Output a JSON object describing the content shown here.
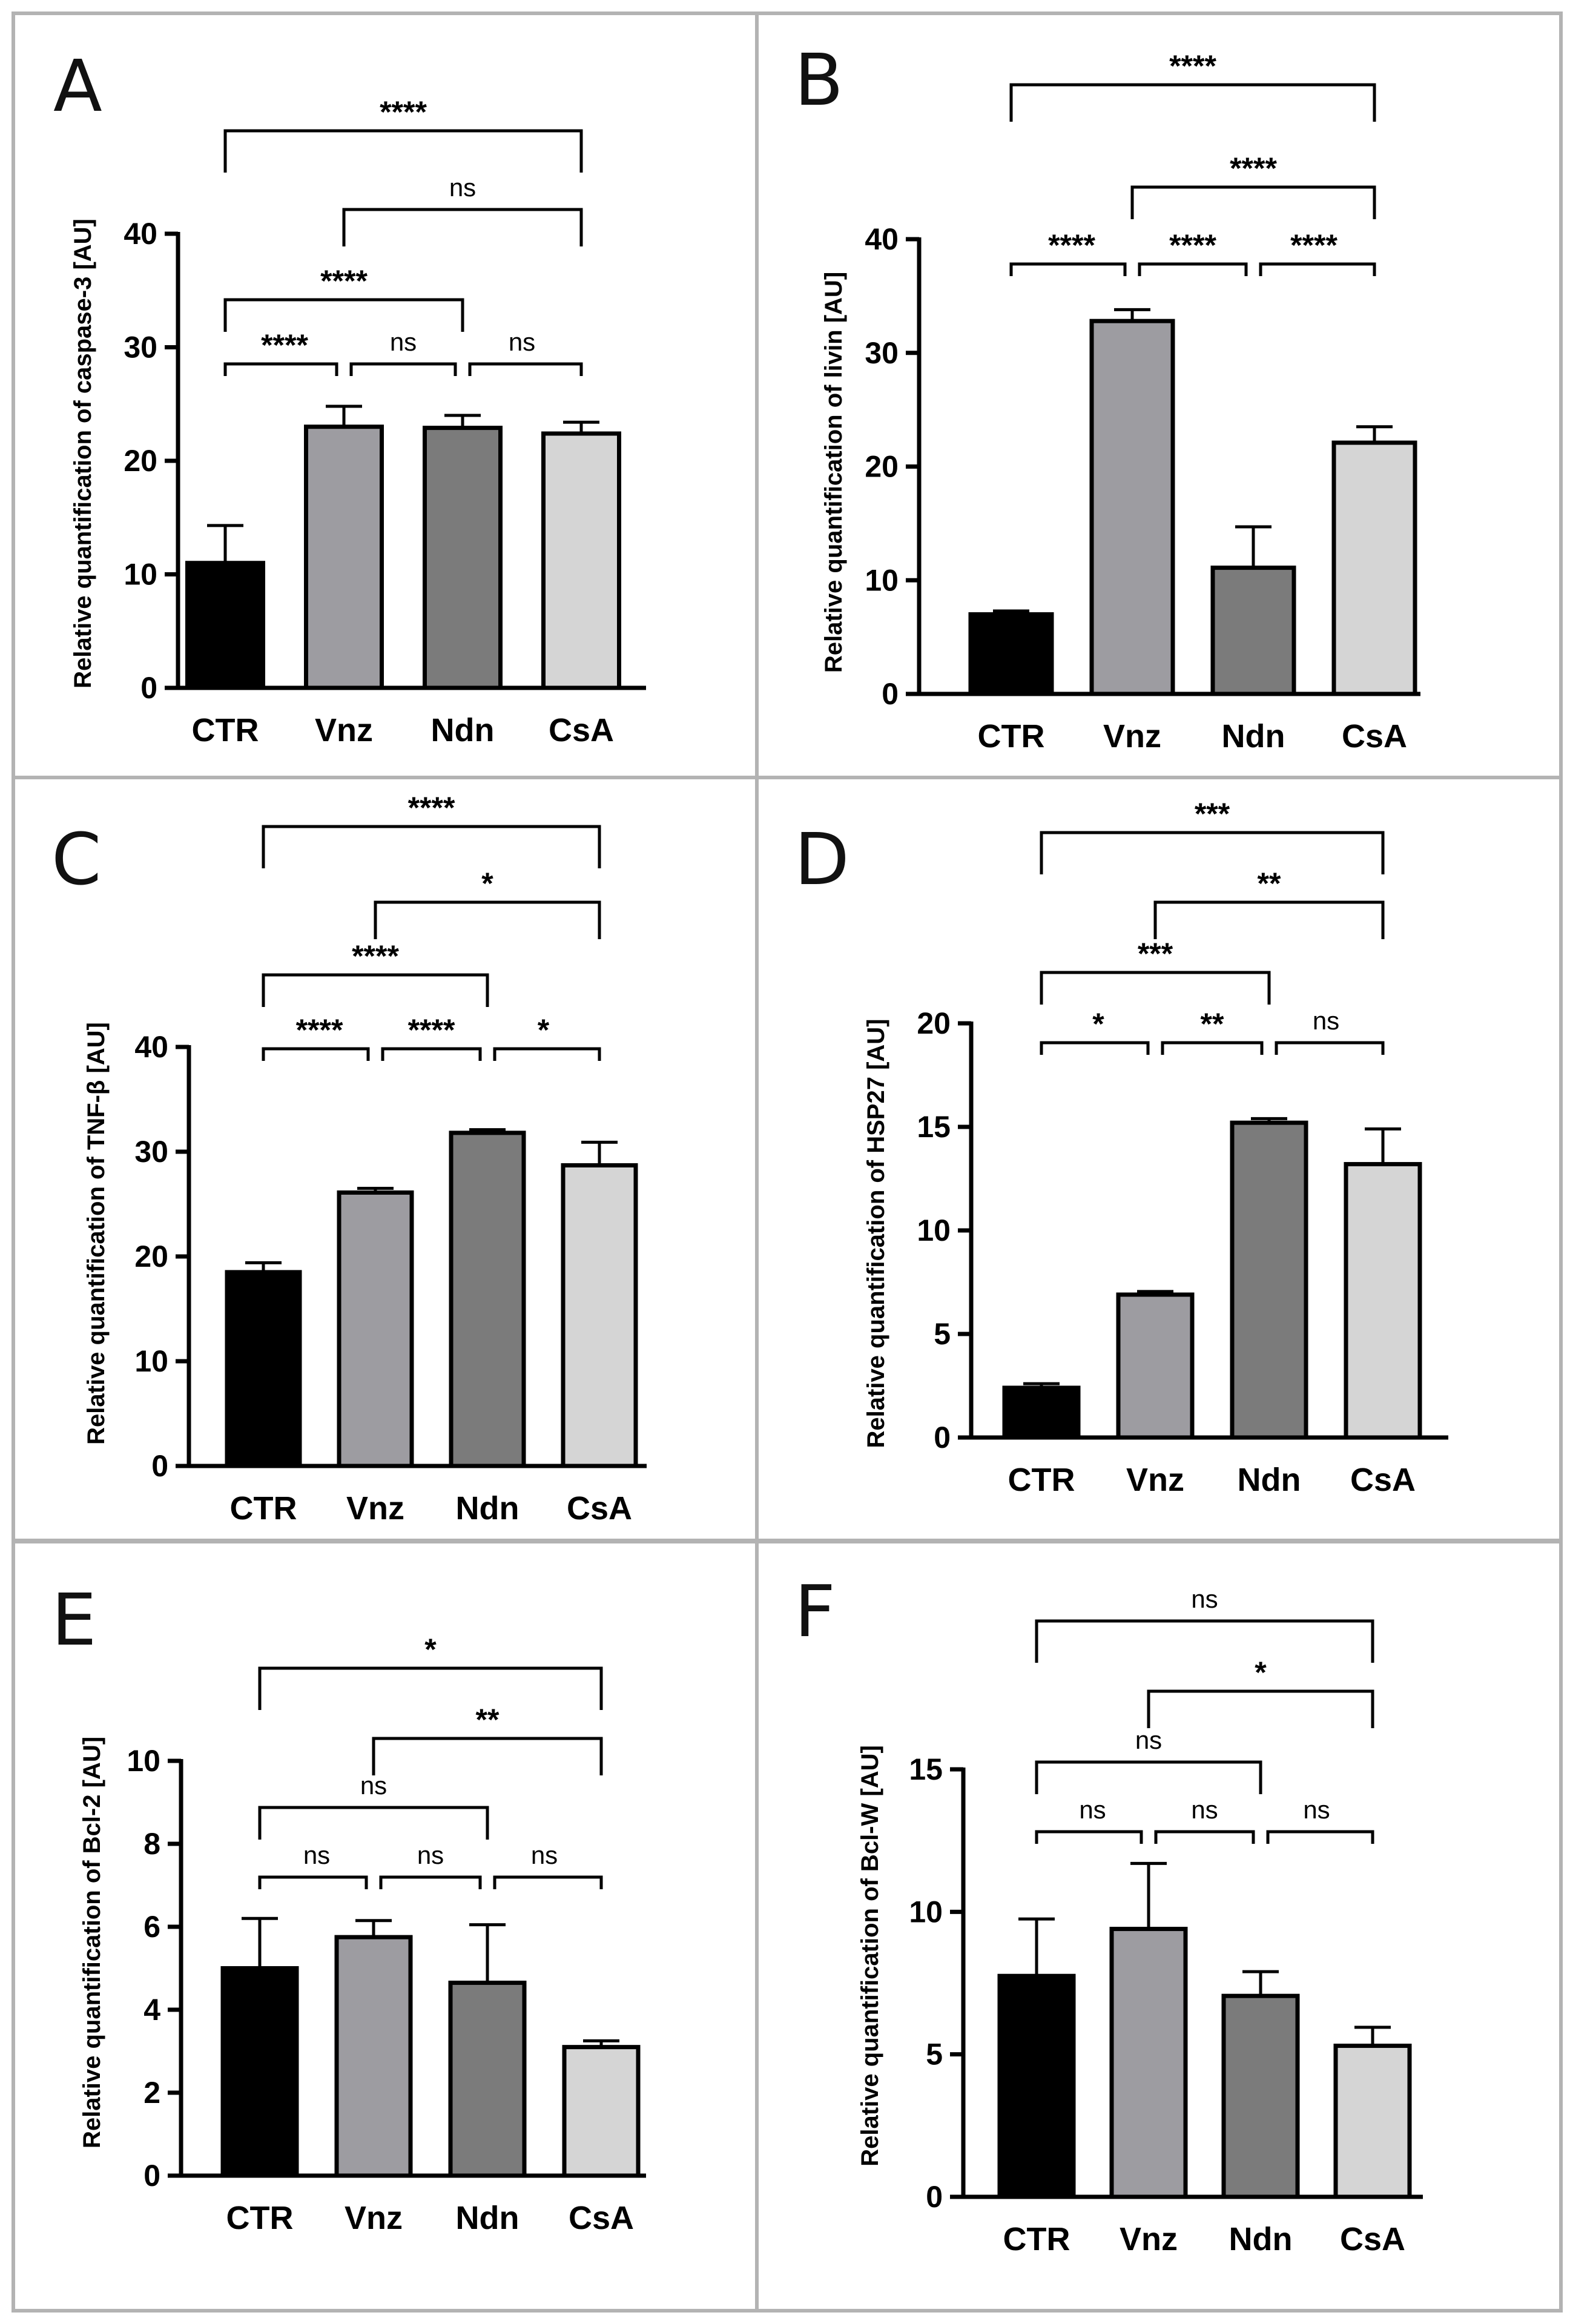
{
  "chart_data": [
    {
      "type": "bar",
      "panel": "A",
      "categories": [
        "CTR",
        "Vnz",
        "Ndn",
        "CsA"
      ],
      "values": [
        11.0,
        23.0,
        22.9,
        22.4
      ],
      "errors": [
        3.3,
        1.8,
        1.1,
        1.0
      ],
      "bar_colors": [
        "#000000",
        "#9d9ca1",
        "#7b7b7b",
        "#d5d5d5"
      ],
      "ylabel": "Relative quantification of caspase-3 [AU]",
      "ylim": [
        0,
        40
      ],
      "yticks": [
        0,
        10,
        20,
        30,
        40
      ],
      "ytick_labels": [
        "0",
        "10",
        "20",
        "30",
        "40"
      ],
      "comparisons": [
        {
          "from": 0,
          "to": 1,
          "label": "****",
          "level": 0
        },
        {
          "from": 1,
          "to": 2,
          "label": "ns",
          "level": 0
        },
        {
          "from": 2,
          "to": 3,
          "label": "ns",
          "level": 0
        },
        {
          "from": 0,
          "to": 2,
          "label": "****",
          "level": 1
        },
        {
          "from": 1,
          "to": 3,
          "label": "ns",
          "level": 2
        },
        {
          "from": 0,
          "to": 3,
          "label": "****",
          "level": 3
        }
      ]
    },
    {
      "type": "bar",
      "panel": "B",
      "categories": [
        "CTR",
        "Vnz",
        "Ndn",
        "CsA"
      ],
      "values": [
        7.0,
        32.8,
        11.1,
        22.1
      ],
      "errors": [
        0.3,
        1.0,
        3.6,
        1.4
      ],
      "bar_colors": [
        "#000000",
        "#9d9ca1",
        "#7b7b7b",
        "#d5d5d5"
      ],
      "ylabel": "Relative quantification of livin [AU]",
      "ylim": [
        0,
        40
      ],
      "yticks": [
        0,
        10,
        20,
        30,
        40
      ],
      "ytick_labels": [
        "0",
        "10",
        "20",
        "30",
        "40"
      ],
      "comparisons": [
        {
          "from": 0,
          "to": 1,
          "label": "****",
          "level": 0
        },
        {
          "from": 1,
          "to": 2,
          "label": "****",
          "level": 0
        },
        {
          "from": 2,
          "to": 3,
          "label": "****",
          "level": 0
        },
        {
          "from": 1,
          "to": 3,
          "label": "****",
          "level": 1
        },
        {
          "from": 0,
          "to": 3,
          "label": "****",
          "level": 2
        }
      ]
    },
    {
      "type": "bar",
      "panel": "C",
      "categories": [
        "CTR",
        "Vnz",
        "Ndn",
        "CsA"
      ],
      "values": [
        18.5,
        26.1,
        31.8,
        28.7
      ],
      "errors": [
        0.9,
        0.4,
        0.3,
        2.2
      ],
      "bar_colors": [
        "#000000",
        "#9d9ca1",
        "#7b7b7b",
        "#d5d5d5"
      ],
      "ylabel": "Relative quantification of TNF-β [AU]",
      "ylim": [
        0,
        40
      ],
      "yticks": [
        0,
        10,
        20,
        30,
        40
      ],
      "ytick_labels": [
        "0",
        "10",
        "20",
        "30",
        "40"
      ],
      "comparisons": [
        {
          "from": 0,
          "to": 1,
          "label": "****",
          "level": 0
        },
        {
          "from": 1,
          "to": 2,
          "label": "****",
          "level": 0
        },
        {
          "from": 2,
          "to": 3,
          "label": "*",
          "level": 0
        },
        {
          "from": 0,
          "to": 2,
          "label": "****",
          "level": 1
        },
        {
          "from": 1,
          "to": 3,
          "label": "*",
          "level": 2
        },
        {
          "from": 0,
          "to": 3,
          "label": "****",
          "level": 3
        }
      ]
    },
    {
      "type": "bar",
      "panel": "D",
      "categories": [
        "CTR",
        "Vnz",
        "Ndn",
        "CsA"
      ],
      "values": [
        2.4,
        6.9,
        15.2,
        13.2
      ],
      "errors": [
        0.2,
        0.15,
        0.2,
        1.7
      ],
      "bar_colors": [
        "#000000",
        "#9d9ca1",
        "#7b7b7b",
        "#d5d5d5"
      ],
      "ylabel": "Relative quantification of HSP27 [AU]",
      "ylim": [
        0,
        20
      ],
      "yticks": [
        0,
        5,
        10,
        15,
        20
      ],
      "ytick_labels": [
        "0",
        "5",
        "10",
        "15",
        "20"
      ],
      "comparisons": [
        {
          "from": 0,
          "to": 1,
          "label": "*",
          "level": 0
        },
        {
          "from": 1,
          "to": 2,
          "label": "**",
          "level": 0
        },
        {
          "from": 2,
          "to": 3,
          "label": "ns",
          "level": 0
        },
        {
          "from": 0,
          "to": 2,
          "label": "***",
          "level": 1
        },
        {
          "from": 1,
          "to": 3,
          "label": "**",
          "level": 2
        },
        {
          "from": 0,
          "to": 3,
          "label": "***",
          "level": 3
        }
      ]
    },
    {
      "type": "bar",
      "panel": "E",
      "categories": [
        "CTR",
        "Vnz",
        "Ndn",
        "CsA"
      ],
      "values": [
        5.0,
        5.75,
        4.65,
        3.1
      ],
      "errors": [
        1.2,
        0.4,
        1.4,
        0.15
      ],
      "bar_colors": [
        "#000000",
        "#9d9ca1",
        "#7b7b7b",
        "#d5d5d5"
      ],
      "ylabel": "Relative quantification of Bcl-2 [AU]",
      "ylim": [
        0,
        10
      ],
      "yticks": [
        0,
        2,
        4,
        6,
        8,
        10
      ],
      "ytick_labels": [
        "0",
        "2",
        "4",
        "6",
        "8",
        "10"
      ],
      "comparisons": [
        {
          "from": 0,
          "to": 1,
          "label": "ns",
          "level": 0
        },
        {
          "from": 1,
          "to": 2,
          "label": "ns",
          "level": 0
        },
        {
          "from": 2,
          "to": 3,
          "label": "ns",
          "level": 0
        },
        {
          "from": 0,
          "to": 2,
          "label": "ns",
          "level": 1
        },
        {
          "from": 1,
          "to": 3,
          "label": "**",
          "level": 2
        },
        {
          "from": 0,
          "to": 3,
          "label": "*",
          "level": 3
        }
      ]
    },
    {
      "type": "bar",
      "panel": "F",
      "categories": [
        "CTR",
        "Vnz",
        "Ndn",
        "CsA"
      ],
      "values": [
        7.75,
        9.4,
        7.05,
        5.3
      ],
      "errors": [
        2.0,
        2.3,
        0.85,
        0.65
      ],
      "bar_colors": [
        "#000000",
        "#9d9ca1",
        "#7b7b7b",
        "#d5d5d5"
      ],
      "ylabel": "Relative quantification of Bcl-W [AU]",
      "ylim": [
        0,
        15
      ],
      "yticks": [
        0,
        5,
        10,
        15
      ],
      "ytick_labels": [
        "0",
        "5",
        "10",
        "15"
      ],
      "comparisons": [
        {
          "from": 0,
          "to": 1,
          "label": "ns",
          "level": 0
        },
        {
          "from": 1,
          "to": 2,
          "label": "ns",
          "level": 0
        },
        {
          "from": 2,
          "to": 3,
          "label": "ns",
          "level": 0
        },
        {
          "from": 0,
          "to": 2,
          "label": "ns",
          "level": 1
        },
        {
          "from": 1,
          "to": 3,
          "label": "*",
          "level": 2
        },
        {
          "from": 0,
          "to": 3,
          "label": "ns",
          "level": 3
        }
      ]
    }
  ]
}
